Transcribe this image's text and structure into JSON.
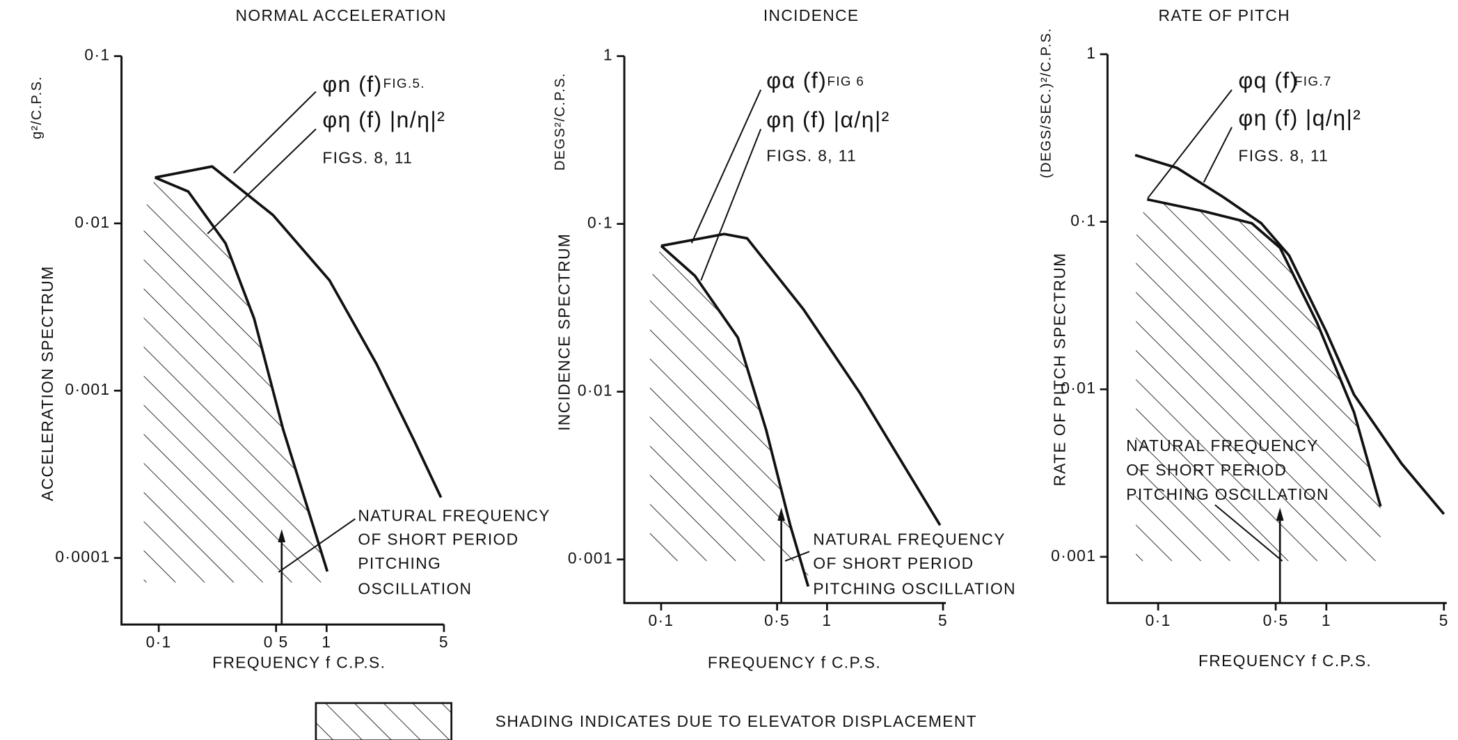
{
  "chart_data": [
    {
      "type": "line",
      "title": "NORMAL ACCELERATION",
      "x_label": "FREQUENCY  f C.P.S.",
      "y_label": "ACCELERATION SPECTRUM",
      "y_unit": "g²/C.P.S.",
      "xscale": "log",
      "yscale": "log",
      "xlim": [
        0.06,
        5
      ],
      "ylim": [
        4e-05,
        0.1
      ],
      "xticks": [
        {
          "value": 0.1,
          "label": "0·1"
        },
        {
          "value": 0.5,
          "label": "0 5"
        },
        1,
        5
      ],
      "yticks": [
        {
          "value": 0.1,
          "label": "0·1"
        },
        {
          "value": 0.01,
          "label": "0·01"
        },
        {
          "value": 0.001,
          "label": "0·001"
        },
        {
          "value": 0.0001,
          "label": "0·0001"
        }
      ],
      "series": [
        {
          "name": "φn (f)",
          "color": "#111111",
          "x": [
            0.095,
            0.208,
            0.48,
            1.04,
            1.98,
            3.3,
            4.8
          ],
          "values": [
            0.0188,
            0.0219,
            0.0112,
            0.00457,
            0.00145,
            0.00051,
            0.00023
          ]
        },
        {
          "name": "φη (f) |n/η|²",
          "color": "#111111",
          "x": [
            0.095,
            0.15,
            0.25,
            0.37,
            0.55,
            1.01
          ],
          "values": [
            0.0188,
            0.0155,
            0.0076,
            0.0027,
            0.00059,
            8.3e-05
          ]
        }
      ],
      "marker_x": 0.54,
      "annotations": [
        "FIG.5.",
        "FIGS. 8, 11",
        "NATURAL FREQUENCY",
        "OF SHORT PERIOD",
        "PITCHING",
        "OSCILLATION"
      ]
    },
    {
      "type": "line",
      "title": "INCIDENCE",
      "x_label": "FREQUENCY  f  C.P.S.",
      "y_label": "INCIDENCE SPECTRUM",
      "y_unit": "DEGS²/C.P.S.",
      "xscale": "log",
      "yscale": "log",
      "xlim": [
        0.06,
        5.2
      ],
      "ylim": [
        0.00055,
        1
      ],
      "xticks": [
        {
          "value": 0.1,
          "label": "0·1"
        },
        {
          "value": 0.5,
          "label": "0·5"
        },
        1,
        5
      ],
      "yticks": [
        1,
        {
          "value": 0.1,
          "label": "0·1"
        },
        {
          "value": 0.01,
          "label": "0·01"
        },
        {
          "value": 0.001,
          "label": "0·001"
        }
      ],
      "series": [
        {
          "name": "φα (f)",
          "color": "#111111",
          "x": [
            0.1,
            0.24,
            0.33,
            0.72,
            1.58,
            4.8
          ],
          "values": [
            0.074,
            0.087,
            0.082,
            0.031,
            0.0098,
            0.0016
          ]
        },
        {
          "name": "φη (f) |α/η|²",
          "color": "#111111",
          "x": [
            0.1,
            0.16,
            0.29,
            0.43,
            0.6,
            0.77
          ],
          "values": [
            0.074,
            0.049,
            0.021,
            0.0059,
            0.0016,
            0.00069
          ]
        }
      ],
      "marker_x": 0.53,
      "annotations": [
        "FIG 6",
        "FIGS. 8, 11",
        "NATURAL FREQUENCY",
        "OF SHORT PERIOD",
        "PITCHING OSCILLATION"
      ]
    },
    {
      "type": "line",
      "title": "RATE OF PITCH",
      "x_label": "FREQUENCY  f  C.P.S.",
      "y_label": "RATE OF PITCH SPECTRUM",
      "y_unit": "(DEGS/SEC.)²/C.P.S.",
      "xscale": "log",
      "yscale": "log",
      "xlim": [
        0.05,
        5.2
      ],
      "ylim": [
        0.00053,
        1
      ],
      "xticks": [
        {
          "value": 0.1,
          "label": "0·1"
        },
        {
          "value": 0.5,
          "label": "0·5"
        },
        1,
        5
      ],
      "yticks": [
        1,
        {
          "value": 0.1,
          "label": "0·1"
        },
        {
          "value": 0.01,
          "label": "0·01"
        },
        {
          "value": 0.001,
          "label": "0·001"
        }
      ],
      "series": [
        {
          "name": "φq (f)",
          "color": "#111111",
          "x": [
            0.073,
            0.129,
            0.245,
            0.41,
            0.6,
            1.0,
            1.46,
            2.8,
            5
          ],
          "values": [
            0.25,
            0.21,
            0.14,
            0.098,
            0.063,
            0.022,
            0.0093,
            0.0036,
            0.0018
          ]
        },
        {
          "name": "φη (f) |q/η|²",
          "color": "#111111",
          "x": [
            0.086,
            0.19,
            0.36,
            0.53,
            0.88,
            1.46,
            2.1
          ],
          "values": [
            0.136,
            0.115,
            0.098,
            0.07,
            0.025,
            0.0073,
            0.002
          ]
        }
      ],
      "marker_x": 0.53,
      "annotations": [
        "FIG.7",
        "FIGS. 8, 11",
        "NATURAL FREQUENCY",
        "OF SHORT PERIOD",
        "PITCHING OSCILLATION"
      ]
    }
  ],
  "footnote": "SHADING  INDICATES  DUE  TO  ELEVATOR  DISPLACEMENT"
}
